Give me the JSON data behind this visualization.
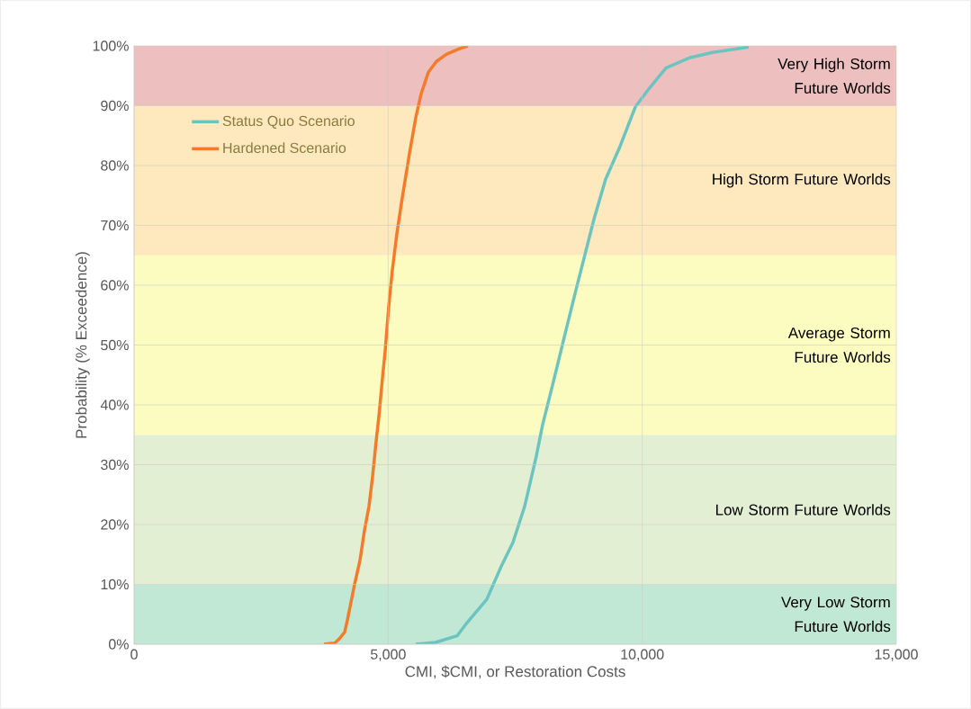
{
  "chart_data": {
    "type": "line",
    "xlabel": "CMI, $CMI, or Restoration Costs",
    "ylabel": "Probability (% Exceedence)",
    "series": [
      {
        "name": "Status Quo Scenario",
        "color": "#6cc4c0",
        "x": [
          5543,
          5932,
          6357,
          6552,
          6941,
          7225,
          7455,
          7685,
          7915,
          8040,
          8235,
          8465,
          8695,
          8854,
          9049,
          9279,
          9563,
          9864,
          10147,
          10466,
          10926,
          11387,
          12095
        ],
        "values": [
          0,
          0.3,
          1.4,
          3.6,
          7.5,
          13,
          17,
          23,
          31.4,
          36.7,
          43.3,
          51.3,
          59.2,
          64.5,
          71,
          77.7,
          83.2,
          89.8,
          93,
          96.3,
          98,
          98.9,
          99.8
        ]
      },
      {
        "name": "Hardened Scenario",
        "color": "#f47b2a",
        "x": [
          3737,
          3950,
          4037,
          4144,
          4197,
          4268,
          4339,
          4445,
          4533,
          4622,
          4693,
          4764,
          4817,
          4888,
          4941,
          5011,
          5082,
          5171,
          5277,
          5419,
          5543,
          5649,
          5791,
          5950,
          6145,
          6393,
          6570
        ],
        "values": [
          0,
          0.2,
          0.9,
          2,
          4,
          7,
          10,
          14,
          19,
          23,
          28,
          34,
          38,
          44.5,
          49,
          56.5,
          62.5,
          68.6,
          74.6,
          82,
          88,
          92,
          95.6,
          97.4,
          98.6,
          99.5,
          100
        ]
      }
    ],
    "bands": [
      {
        "axis": "y",
        "from": 0,
        "to": 10,
        "label": "Very Low Storm Future Worlds",
        "color": "#c0e8d4"
      },
      {
        "axis": "y",
        "from": 10,
        "to": 35,
        "label": "Low Storm Future Worlds",
        "color": "#e3efd2"
      },
      {
        "axis": "y",
        "from": 35,
        "to": 65,
        "label": "Average Storm Future Worlds",
        "color": "#fdfcc0"
      },
      {
        "axis": "y",
        "from": 65,
        "to": 90,
        "label": "High Storm Future Worlds",
        "color": "#fde9bd"
      },
      {
        "axis": "y",
        "from": 90,
        "to": 100,
        "label": "Very High Storm Future Worlds",
        "color": "#eebfbf"
      }
    ],
    "xlim": [
      0,
      15000
    ],
    "ylim": [
      0,
      100
    ],
    "xticks": [
      0,
      {
        "value": 5000,
        "label": "5,000"
      },
      {
        "value": 10000,
        "label": "10,000"
      },
      {
        "value": 15000,
        "label": "15,000"
      }
    ],
    "yticks": [
      {
        "value": 0,
        "label": "0%"
      },
      {
        "value": 10,
        "label": "10%"
      },
      {
        "value": 20,
        "label": "20%"
      },
      {
        "value": 30,
        "label": "30%"
      },
      {
        "value": 40,
        "label": "40%"
      },
      {
        "value": 50,
        "label": "50%"
      },
      {
        "value": 60,
        "label": "60%"
      },
      {
        "value": 70,
        "label": "70%"
      },
      {
        "value": 80,
        "label": "80%"
      },
      {
        "value": 90,
        "label": "90%"
      },
      {
        "value": 100,
        "label": "100%"
      }
    ],
    "grid": true,
    "legend": "top left",
    "marker": "none",
    "line_style": "solid"
  }
}
